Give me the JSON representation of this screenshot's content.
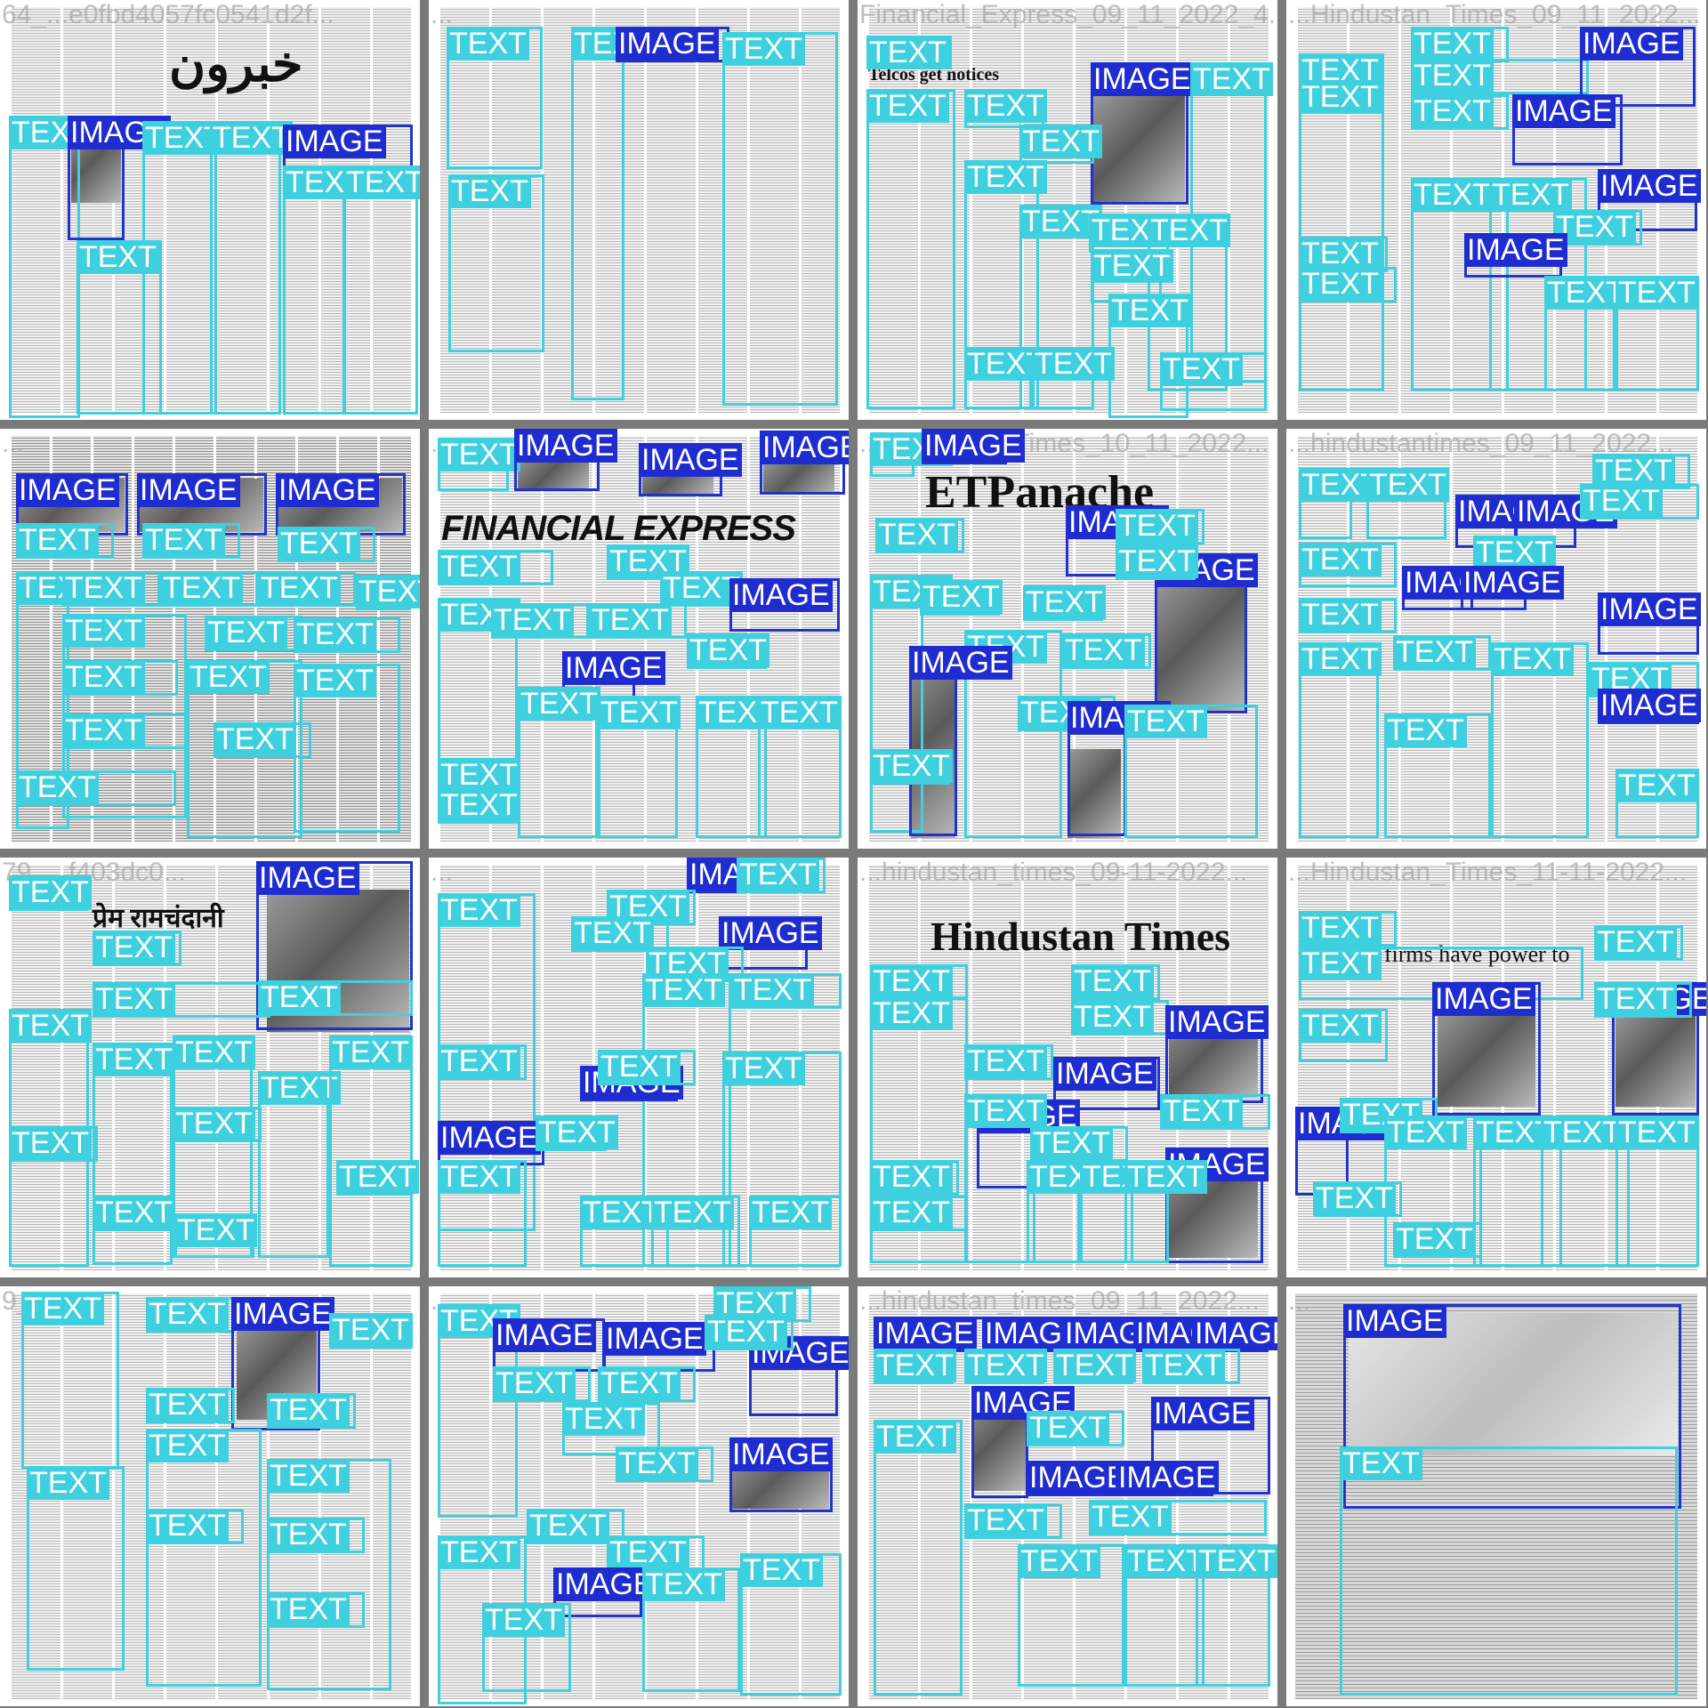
{
  "labels": {
    "text": "TEXT",
    "image": "IMAGE"
  },
  "colors": {
    "text_box": "#3fd0e0",
    "image_box": "#1f2ccf",
    "background": "#7a7a7a"
  },
  "tiles": [
    {
      "id": "t1",
      "filename": "64_...e0fbd4057fc0541d2f...",
      "style": "light",
      "masthead": "خبرون",
      "boxes": [
        "T",
        "I",
        "T",
        "T",
        "I",
        "T",
        "T",
        "I",
        "T"
      ]
    },
    {
      "id": "t2",
      "filename": "...",
      "style": "light",
      "masthead": "",
      "boxes": [
        "T",
        "T",
        "I",
        "T",
        "T"
      ]
    },
    {
      "id": "t3",
      "filename": "Financial_Express_09_11_2022_4...",
      "style": "light",
      "masthead": "Telcos get notices",
      "boxes": [
        "T",
        "T",
        "I",
        "T",
        "T",
        "T",
        "T",
        "T",
        "T",
        "T",
        "T",
        "T",
        "T",
        "T",
        "T"
      ]
    },
    {
      "id": "t4",
      "filename": "...Hindustan_Times_09_11_2022...",
      "style": "light",
      "masthead": "",
      "boxes": [
        "T",
        "T",
        "T",
        "T",
        "I",
        "I",
        "T",
        "T",
        "T",
        "I",
        "T",
        "T",
        "T",
        "T",
        "I",
        "T",
        "T"
      ]
    },
    {
      "id": "t5",
      "filename": "...",
      "style": "dark",
      "masthead": "",
      "boxes": [
        "I",
        "I",
        "I",
        "T",
        "T",
        "T",
        "T",
        "T",
        "T",
        "T",
        "T",
        "T",
        "T",
        "T",
        "T",
        "T",
        "T",
        "T",
        "T",
        "T",
        "T"
      ]
    },
    {
      "id": "t6",
      "filename": "...",
      "style": "light",
      "masthead": "FINANCIAL EXPRESS",
      "boxes": [
        "T",
        "I",
        "I",
        "I",
        "T",
        "T",
        "T",
        "I",
        "T",
        "T",
        "T",
        "I",
        "T",
        "T",
        "T",
        "T",
        "T",
        "T",
        "T",
        "T"
      ]
    },
    {
      "id": "t7",
      "filename": "...Economic_Times_10_11_2022...",
      "style": "light",
      "masthead": "ETPanache",
      "boxes": [
        "T",
        "I",
        "I",
        "T",
        "T",
        "I",
        "T",
        "T",
        "T",
        "T",
        "T",
        "I",
        "T",
        "T",
        "I",
        "T",
        "T",
        "I",
        "T"
      ]
    },
    {
      "id": "t8",
      "filename": "...hindustantimes_09_11_2022...",
      "style": "light",
      "masthead": "",
      "boxes": [
        "T",
        "T",
        "T",
        "I",
        "I",
        "T",
        "T",
        "T",
        "I",
        "I",
        "I",
        "T",
        "T",
        "T",
        "T",
        "T",
        "T",
        "T",
        "I",
        "T"
      ]
    },
    {
      "id": "t9",
      "filename": "79_...f403dc0...",
      "style": "light",
      "masthead": "प्रेम रामचंदानी",
      "boxes": [
        "T",
        "I",
        "T",
        "T",
        "T",
        "T",
        "T",
        "T",
        "T",
        "T",
        "T",
        "T",
        "T",
        "T",
        "T"
      ]
    },
    {
      "id": "t10",
      "filename": "...",
      "style": "light",
      "masthead": "",
      "boxes": [
        "T",
        "I",
        "T",
        "T",
        "I",
        "T",
        "T",
        "T",
        "T",
        "I",
        "T",
        "T",
        "T",
        "I",
        "T",
        "T",
        "T",
        "T",
        "T",
        "T"
      ]
    },
    {
      "id": "t11",
      "filename": "...hindustan_times_09-11-2022...",
      "style": "light",
      "masthead": "Hindustan Times",
      "boxes": [
        "T",
        "T",
        "T",
        "T",
        "I",
        "T",
        "I",
        "I",
        "T",
        "T",
        "I",
        "T",
        "T",
        "T",
        "T",
        "T",
        "T"
      ]
    },
    {
      "id": "t12",
      "filename": "...Hindustan_Times_11-11-2022...",
      "style": "light",
      "masthead": "Big tech firms have power to",
      "boxes": [
        "T",
        "T",
        "I",
        "T",
        "I",
        "T",
        "T",
        "I",
        "T",
        "T",
        "T",
        "T",
        "T",
        "T",
        "T"
      ]
    },
    {
      "id": "t13",
      "filename": "9_...",
      "style": "light",
      "masthead": "",
      "boxes": [
        "T",
        "T",
        "I",
        "T",
        "T",
        "T",
        "T",
        "T",
        "T",
        "T",
        "T",
        "T"
      ]
    },
    {
      "id": "t14",
      "filename": "...",
      "style": "light",
      "masthead": "",
      "boxes": [
        "T",
        "I",
        "I",
        "I",
        "T",
        "T",
        "T",
        "T",
        "T",
        "I",
        "T",
        "T",
        "T",
        "T",
        "T",
        "I",
        "T",
        "T",
        "T"
      ]
    },
    {
      "id": "t15",
      "filename": "...hindustan_times_09_11_2022...",
      "style": "light",
      "masthead": "",
      "boxes": [
        "I",
        "I",
        "I",
        "I",
        "I",
        "T",
        "T",
        "T",
        "T",
        "I",
        "T",
        "T",
        "I",
        "I",
        "I",
        "T",
        "T",
        "T",
        "T",
        "T"
      ]
    },
    {
      "id": "t16",
      "filename": "...",
      "style": "scan",
      "masthead": "",
      "boxes": [
        "I",
        "T"
      ]
    }
  ]
}
